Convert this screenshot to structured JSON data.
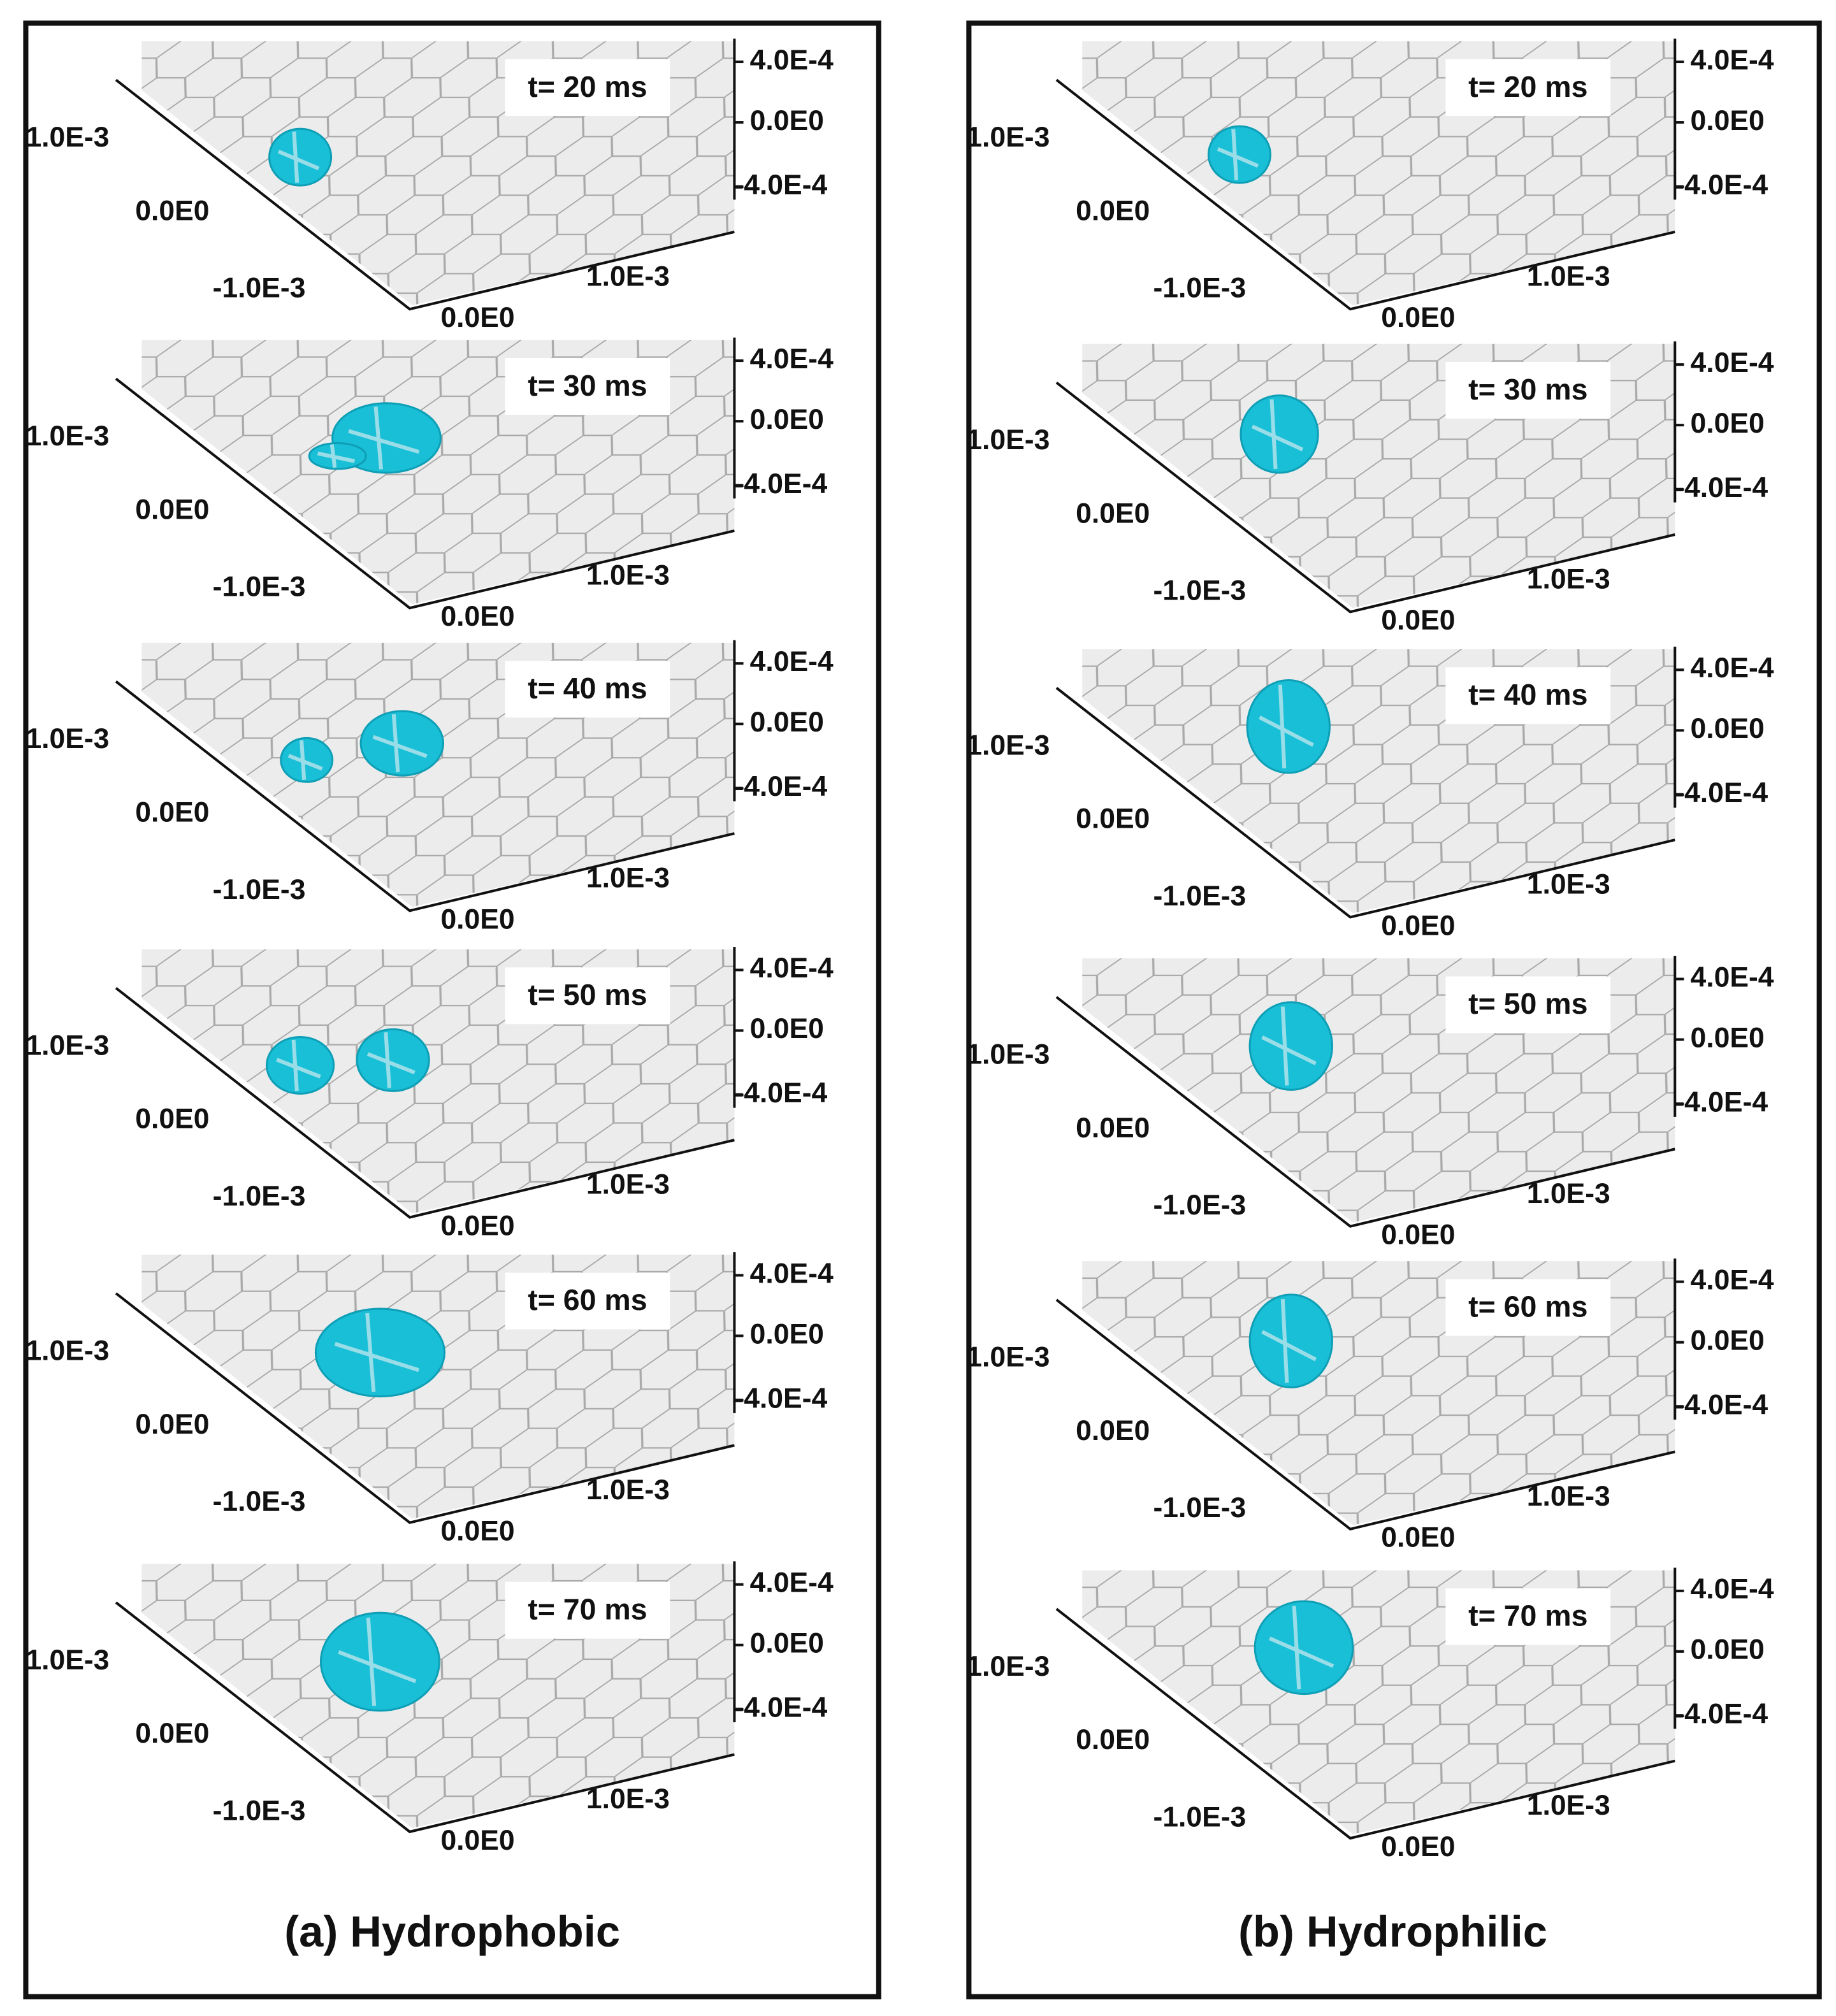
{
  "panels": [
    {
      "caption": "(a) Hydrophobic",
      "frames": [
        {
          "time": "t= 20 ms",
          "z_ticks": [
            "4.0E-4",
            "0.0E0",
            "-4.0E-4"
          ],
          "y_ticks": [
            "1.0E-3",
            "0.0E0",
            "-1.0E-3"
          ],
          "x_ticks": [
            "1.0E-3",
            "0.0E0"
          ]
        },
        {
          "time": "t= 30 ms",
          "z_ticks": [
            "4.0E-4",
            "0.0E0",
            "-4.0E-4"
          ],
          "y_ticks": [
            "1.0E-3",
            "0.0E0",
            "-1.0E-3"
          ],
          "x_ticks": [
            "1.0E-3",
            "0.0E0"
          ]
        },
        {
          "time": "t= 40 ms",
          "z_ticks": [
            "4.0E-4",
            "0.0E0",
            "-4.0E-4"
          ],
          "y_ticks": [
            "1.0E-3",
            "0.0E0",
            "-1.0E-3"
          ],
          "x_ticks": [
            "1.0E-3",
            "0.0E0"
          ]
        },
        {
          "time": "t= 50 ms",
          "z_ticks": [
            "4.0E-4",
            "0.0E0",
            "-4.0E-4"
          ],
          "y_ticks": [
            "1.0E-3",
            "0.0E0",
            "-1.0E-3"
          ],
          "x_ticks": [
            "1.0E-3",
            "0.0E0"
          ]
        },
        {
          "time": "t= 60 ms",
          "z_ticks": [
            "4.0E-4",
            "0.0E0",
            "-4.0E-4"
          ],
          "y_ticks": [
            "1.0E-3",
            "0.0E0",
            "-1.0E-3"
          ],
          "x_ticks": [
            "1.0E-3",
            "0.0E0"
          ]
        },
        {
          "time": "t= 70 ms",
          "z_ticks": [
            "4.0E-4",
            "0.0E0",
            "-4.0E-4"
          ],
          "y_ticks": [
            "1.0E-3",
            "0.0E0",
            "-1.0E-3"
          ],
          "x_ticks": [
            "1.0E-3",
            "0.0E0"
          ]
        }
      ]
    },
    {
      "caption": "(b) Hydrophilic",
      "frames": [
        {
          "time": "t= 20 ms",
          "z_ticks": [
            "4.0E-4",
            "0.0E0",
            "-4.0E-4"
          ],
          "y_ticks": [
            "1.0E-3",
            "0.0E0",
            "-1.0E-3"
          ],
          "x_ticks": [
            "1.0E-3",
            "0.0E0"
          ]
        },
        {
          "time": "t= 30 ms",
          "z_ticks": [
            "4.0E-4",
            "0.0E0",
            "-4.0E-4"
          ],
          "y_ticks": [
            "1.0E-3",
            "0.0E0",
            "-1.0E-3"
          ],
          "x_ticks": [
            "1.0E-3",
            "0.0E0"
          ]
        },
        {
          "time": "t= 40 ms",
          "z_ticks": [
            "4.0E-4",
            "0.0E0",
            "-4.0E-4"
          ],
          "y_ticks": [
            "1.0E-3",
            "0.0E0",
            "-1.0E-3"
          ],
          "x_ticks": [
            "1.0E-3",
            "0.0E0"
          ]
        },
        {
          "time": "t= 50 ms",
          "z_ticks": [
            "4.0E-4",
            "0.0E0",
            "-4.0E-4"
          ],
          "y_ticks": [
            "1.0E-3",
            "0.0E0",
            "-1.0E-3"
          ],
          "x_ticks": [
            "1.0E-3",
            "0.0E0"
          ]
        },
        {
          "time": "t= 60 ms",
          "z_ticks": [
            "4.0E-4",
            "0.0E0",
            "-4.0E-4"
          ],
          "y_ticks": [
            "1.0E-3",
            "0.0E0",
            "-1.0E-3"
          ],
          "x_ticks": [
            "1.0E-3",
            "0.0E0"
          ]
        },
        {
          "time": "t= 70 ms",
          "z_ticks": [
            "4.0E-4",
            "0.0E0",
            "-4.0E-4"
          ],
          "y_ticks": [
            "1.0E-3",
            "0.0E0",
            "-1.0E-3"
          ],
          "x_ticks": [
            "1.0E-3",
            "0.0E0"
          ]
        }
      ]
    }
  ]
}
